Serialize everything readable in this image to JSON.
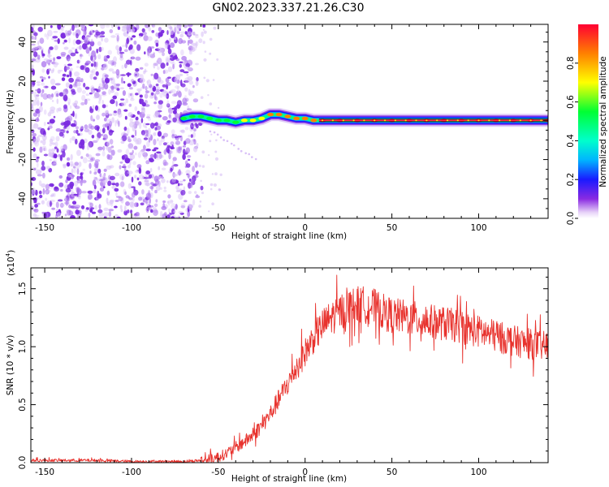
{
  "title": "GN02.2023.337.21.26.C30",
  "chart_data": [
    {
      "type": "heatmap",
      "xlabel": "Height of straight line (km)",
      "ylabel": "Frequency (Hz)",
      "xlim": [
        -158,
        140
      ],
      "ylim": [
        -50,
        49
      ],
      "xticks": [
        -150,
        -100,
        -50,
        0,
        50,
        100
      ],
      "yticks": [
        -40,
        -20,
        0,
        20,
        40
      ],
      "colorbar": {
        "label": "Normalized spectral amplitude",
        "range": [
          0.0,
          1.0
        ],
        "ticks": [
          "0.0",
          "0.2",
          "0.4",
          "0.6",
          "0.8"
        ],
        "tick_values": [
          0.0,
          0.2,
          0.4,
          0.6,
          0.8
        ]
      },
      "noise_region_x": [
        -158,
        -62
      ],
      "noise_color": "#7b2be0",
      "ridge": {
        "x": [
          -70,
          -65,
          -60,
          -55,
          -50,
          -45,
          -40,
          -35,
          -30,
          -25,
          -20,
          -15,
          -10,
          -5,
          0,
          5,
          10,
          20,
          30,
          40,
          50,
          60,
          70,
          80,
          90,
          100,
          110,
          120,
          130,
          140
        ],
        "freq": [
          1,
          2,
          2,
          1,
          0,
          0,
          -1,
          0,
          0,
          1,
          3,
          3,
          2,
          1,
          1,
          0,
          0,
          0,
          0,
          0,
          0,
          0,
          0,
          0,
          0,
          0,
          0,
          0,
          0,
          0
        ],
        "amplitude": [
          0.45,
          0.5,
          0.55,
          0.5,
          0.55,
          0.5,
          0.55,
          0.6,
          0.65,
          0.7,
          0.75,
          0.75,
          0.75,
          0.75,
          0.8,
          0.85,
          0.9,
          0.95,
          0.95,
          0.95,
          0.95,
          0.95,
          0.95,
          0.95,
          0.95,
          0.95,
          0.95,
          0.95,
          0.95,
          0.95
        ]
      }
    },
    {
      "type": "line",
      "xlabel": "Height of straight line (km)",
      "ylabel": "SNR (10 * v/v)",
      "y_multiplier": "(x10",
      "y_multiplier_exp": "4",
      "xlim": [
        -158,
        140
      ],
      "ylim": [
        0,
        1.68
      ],
      "xticks": [
        -150,
        -100,
        -50,
        0,
        50,
        100
      ],
      "yticks": [
        0.0,
        0.5,
        1.0,
        1.5
      ],
      "ytick_labels": [
        "0.0",
        "0.5",
        "1.0",
        "1.5"
      ],
      "line_color": "#e8332e",
      "series": [
        {
          "x": [
            -158,
            -140,
            -120,
            -100,
            -80,
            -70,
            -60,
            -55,
            -50,
            -45,
            -40,
            -35,
            -30,
            -25,
            -20,
            -15,
            -10,
            -5,
            0,
            5,
            10,
            15,
            20,
            25,
            30,
            35,
            40,
            45,
            50,
            60,
            70,
            80,
            90,
            100,
            110,
            120,
            130,
            140
          ],
          "values": [
            0.02,
            0.02,
            0.02,
            0.01,
            0.01,
            0.01,
            0.02,
            0.03,
            0.05,
            0.08,
            0.13,
            0.18,
            0.24,
            0.32,
            0.42,
            0.55,
            0.68,
            0.82,
            0.95,
            1.08,
            1.18,
            1.25,
            1.3,
            1.34,
            1.36,
            1.36,
            1.34,
            1.3,
            1.27,
            1.25,
            1.22,
            1.2,
            1.17,
            1.13,
            1.09,
            1.05,
            1.02,
            1.0
          ]
        }
      ]
    }
  ]
}
